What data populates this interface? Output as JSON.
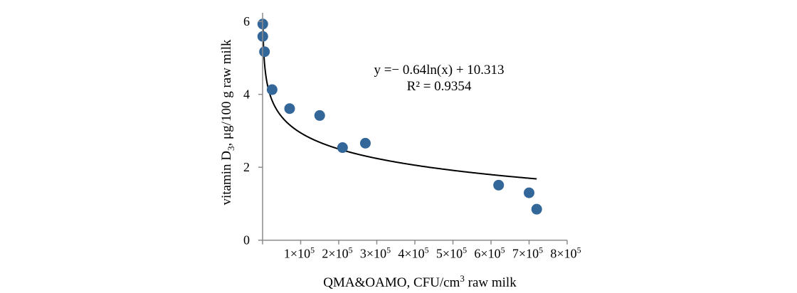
{
  "chart_data": {
    "type": "scatter",
    "title": "",
    "xlabel": "QMA&OAMO, CFU/cm",
    "xlabel_sup": "3",
    "xlabel_suffix": " raw milk",
    "ylabel_prefix": "vitamin D",
    "ylabel_sub": "3",
    "ylabel_suffix": ", μg/100 g raw milk",
    "xlim": [
      0,
      800000
    ],
    "ylim": [
      0,
      6
    ],
    "grid": false,
    "x_ticks": [
      {
        "value": 100000,
        "mantissa": "1×10",
        "exp": "5"
      },
      {
        "value": 200000,
        "mantissa": "2×10",
        "exp": "5"
      },
      {
        "value": 300000,
        "mantissa": "3×10",
        "exp": "5"
      },
      {
        "value": 400000,
        "mantissa": "4×10",
        "exp": "5"
      },
      {
        "value": 500000,
        "mantissa": "5×10",
        "exp": "5"
      },
      {
        "value": 600000,
        "mantissa": "6×10",
        "exp": "5"
      },
      {
        "value": 700000,
        "mantissa": "7×10",
        "exp": "5"
      },
      {
        "value": 800000,
        "mantissa": "8×10",
        "exp": "5"
      }
    ],
    "y_ticks": [
      {
        "value": 0,
        "label": "0"
      },
      {
        "value": 2,
        "label": "2"
      },
      {
        "value": 4,
        "label": "4"
      },
      {
        "value": 6,
        "label": "6"
      }
    ],
    "series": [
      {
        "name": "vitamin D3",
        "color": "#336699",
        "points": [
          {
            "x": 500,
            "y": 5.93
          },
          {
            "x": 500,
            "y": 5.59
          },
          {
            "x": 5000,
            "y": 5.17
          },
          {
            "x": 25000,
            "y": 4.13
          },
          {
            "x": 71000,
            "y": 3.61
          },
          {
            "x": 150000,
            "y": 3.42
          },
          {
            "x": 210000,
            "y": 2.54
          },
          {
            "x": 270000,
            "y": 2.66
          },
          {
            "x": 620000,
            "y": 1.51
          },
          {
            "x": 700000,
            "y": 1.3
          },
          {
            "x": 720000,
            "y": 0.85
          }
        ]
      }
    ],
    "trendline": {
      "type": "logarithmic",
      "a": -0.64,
      "b": 10.313,
      "x_range": [
        900,
        720000
      ],
      "color": "#000000"
    },
    "annotations": {
      "equation": "y =− 0.64ln(x) + 10.313",
      "r_squared": "R² = 0.9354"
    }
  }
}
